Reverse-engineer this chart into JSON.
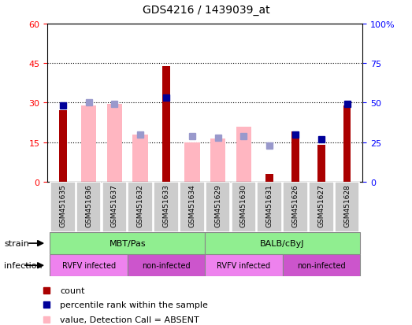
{
  "title": "GDS4216 / 1439039_at",
  "samples": [
    "GSM451635",
    "GSM451636",
    "GSM451637",
    "GSM451632",
    "GSM451633",
    "GSM451634",
    "GSM451629",
    "GSM451630",
    "GSM451631",
    "GSM451626",
    "GSM451627",
    "GSM451628"
  ],
  "count_values": [
    27,
    0,
    0,
    0,
    44,
    0,
    0,
    0,
    3,
    19,
    14,
    29
  ],
  "percentile_rank": [
    48,
    null,
    null,
    null,
    53,
    null,
    null,
    null,
    null,
    30,
    27,
    49
  ],
  "absent_value": [
    null,
    29,
    29.5,
    18,
    null,
    15,
    16.5,
    21,
    null,
    null,
    null,
    null
  ],
  "absent_rank": [
    null,
    50,
    49,
    30,
    null,
    29,
    28,
    29,
    23,
    null,
    null,
    null
  ],
  "left_ylim": [
    0,
    60
  ],
  "right_ylim": [
    0,
    100
  ],
  "left_yticks": [
    0,
    15,
    30,
    45,
    60
  ],
  "right_yticks": [
    0,
    25,
    50,
    75,
    100
  ],
  "right_yticklabels": [
    "0",
    "25",
    "50",
    "75",
    "100%"
  ],
  "bar_color": "#AA0000",
  "absent_bar_color": "#FFB6C1",
  "percentile_color": "#000099",
  "absent_rank_color": "#9999CC",
  "strain_color": "#90EE90",
  "infection_rvfv_color": "#EE82EE",
  "infection_non_color": "#CC55CC",
  "sample_box_color": "#CCCCCC"
}
